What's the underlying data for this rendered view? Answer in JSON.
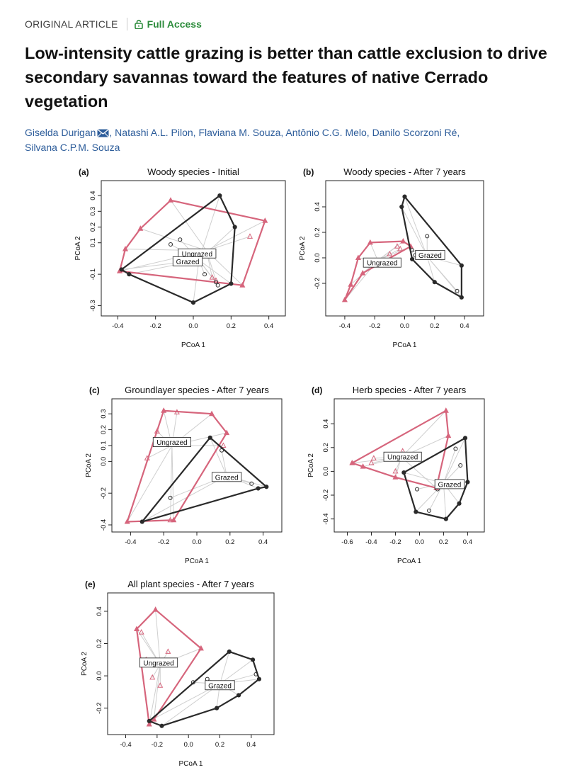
{
  "article_type": "ORIGINAL ARTICLE",
  "access_label": "Full Access",
  "title": "Low-intensity cattle grazing is better than cattle exclusion to drive secondary savannas toward the features of native Cerrado vegetation",
  "authors": {
    "first": "Giselda Durigan",
    "rest_line1": ", Natashi A.L. Pilon, Flaviana M. Souza, Antônio C.G. Melo, Danilo Scorzoni Ré,",
    "rest_line2": "Silvana C.P.M. Souza"
  },
  "colors": {
    "ungrazed": "#d6657c",
    "grazed": "#2a2a2a",
    "link": "#cfcfcf",
    "access": "#2d8c3c",
    "author": "#2c5c9a"
  },
  "chart_data": [
    {
      "type": "scatter",
      "panel": "(a)",
      "title": "Woody species - Initial",
      "xlabel": "PCoA 1",
      "ylabel": "PCoA 2",
      "xlim": [
        -0.45,
        0.45
      ],
      "ylim": [
        -0.32,
        0.45
      ],
      "xticks": [
        -0.4,
        -0.2,
        0.0,
        0.2,
        0.4
      ],
      "xtick_labels": [
        "-0.4",
        "-0.2",
        "0.0",
        "0.2",
        "0.4"
      ],
      "yticks": [
        -0.3,
        -0.1,
        0.1,
        0.2,
        0.3,
        0.4
      ],
      "ytick_labels": [
        "-0.3",
        "-0.1",
        "0.1",
        "0.2",
        "0.3",
        "0.4"
      ],
      "series": [
        {
          "name": "Ungrazed",
          "marker": "triangle",
          "hull": [
            [
              -0.12,
              0.37
            ],
            [
              0.38,
              0.24
            ],
            [
              0.26,
              -0.17
            ],
            [
              -0.39,
              -0.08
            ],
            [
              -0.36,
              0.06
            ],
            [
              -0.28,
              0.19
            ]
          ],
          "inner": [
            [
              0.3,
              0.14
            ],
            [
              0.12,
              -0.14
            ],
            [
              0.1,
              -0.12
            ]
          ],
          "centroid": [
            0.07,
            0.05
          ]
        },
        {
          "name": "Grazed",
          "marker": "circle",
          "hull": [
            [
              0.14,
              0.4
            ],
            [
              0.22,
              0.2
            ],
            [
              0.2,
              -0.16
            ],
            [
              0.0,
              -0.28
            ],
            [
              -0.34,
              -0.1
            ],
            [
              -0.38,
              -0.07
            ]
          ],
          "inner": [
            [
              -0.12,
              0.09
            ],
            [
              -0.07,
              0.12
            ],
            [
              0.06,
              -0.1
            ],
            [
              0.13,
              -0.17
            ],
            [
              0.12,
              -0.15
            ]
          ],
          "centroid": [
            0.03,
            -0.01
          ]
        }
      ],
      "labels": [
        {
          "text": "Ungrazed",
          "at": [
            0.02,
            0.03
          ]
        },
        {
          "text": "Grazed",
          "at": [
            -0.03,
            -0.02
          ]
        }
      ]
    },
    {
      "type": "scatter",
      "panel": "(b)",
      "title": "Woody species - After 7 years",
      "xlabel": "PCoA 1",
      "ylabel": "PCoA 2",
      "xlim": [
        -0.48,
        0.48
      ],
      "ylim": [
        -0.4,
        0.55
      ],
      "xticks": [
        -0.4,
        -0.2,
        0.0,
        0.2,
        0.4
      ],
      "xtick_labels": [
        "-0.4",
        "-0.2",
        "0.0",
        "0.2",
        "0.4"
      ],
      "yticks": [
        -0.2,
        0.0,
        0.2,
        0.4
      ],
      "ytick_labels": [
        "-0.2",
        "0.0",
        "0.2",
        "0.4"
      ],
      "series": [
        {
          "name": "Ungrazed",
          "marker": "triangle",
          "hull": [
            [
              -0.23,
              0.12
            ],
            [
              -0.01,
              0.13
            ],
            [
              0.04,
              0.09
            ],
            [
              -0.28,
              -0.12
            ],
            [
              -0.4,
              -0.33
            ],
            [
              -0.36,
              -0.21
            ],
            [
              -0.31,
              0.0
            ]
          ],
          "inner": [
            [
              -0.1,
              0.03
            ],
            [
              -0.05,
              0.09
            ],
            [
              -0.03,
              0.07
            ]
          ],
          "centroid": [
            -0.18,
            -0.02
          ]
        },
        {
          "name": "Grazed",
          "marker": "circle",
          "hull": [
            [
              0.0,
              0.48
            ],
            [
              0.38,
              -0.06
            ],
            [
              0.38,
              -0.31
            ],
            [
              0.2,
              -0.19
            ],
            [
              0.05,
              -0.01
            ],
            [
              -0.02,
              0.4
            ]
          ],
          "inner": [
            [
              0.15,
              0.17
            ],
            [
              0.07,
              0.02
            ],
            [
              0.05,
              0.06
            ],
            [
              0.35,
              -0.26
            ]
          ],
          "centroid": [
            0.15,
            0.01
          ]
        }
      ],
      "labels": [
        {
          "text": "Ungrazed",
          "at": [
            -0.15,
            -0.04
          ]
        },
        {
          "text": "Grazed",
          "at": [
            0.17,
            0.02
          ]
        }
      ]
    },
    {
      "type": "scatter",
      "panel": "(c)",
      "title": "Groundlayer species - After 7 years",
      "xlabel": "PCoA 1",
      "ylabel": "PCoA 2",
      "xlim": [
        -0.47,
        0.47
      ],
      "ylim": [
        -0.4,
        0.35
      ],
      "xticks": [
        -0.4,
        -0.2,
        0.0,
        0.2,
        0.4
      ],
      "xtick_labels": [
        "-0.4",
        "-0.2",
        "0.0",
        "0.2",
        "0.4"
      ],
      "yticks": [
        -0.4,
        -0.2,
        0.0,
        0.1,
        0.2,
        0.3
      ],
      "ytick_labels": [
        "-0.4",
        "-0.2",
        "0.0",
        "0.1",
        "0.2",
        "0.3"
      ],
      "series": [
        {
          "name": "Ungrazed",
          "marker": "triangle",
          "hull": [
            [
              -0.2,
              0.32
            ],
            [
              0.09,
              0.3
            ],
            [
              0.18,
              0.18
            ],
            [
              -0.14,
              -0.37
            ],
            [
              -0.42,
              -0.38
            ]
          ],
          "inner": [
            [
              -0.24,
              0.19
            ],
            [
              -0.12,
              0.31
            ],
            [
              -0.3,
              0.02
            ],
            [
              0.16,
              0.1
            ],
            [
              -0.16,
              -0.37
            ]
          ],
          "centroid": [
            -0.15,
            0.1
          ]
        },
        {
          "name": "Grazed",
          "marker": "circle",
          "hull": [
            [
              0.08,
              0.15
            ],
            [
              0.42,
              -0.16
            ],
            [
              0.37,
              -0.17
            ],
            [
              -0.33,
              -0.38
            ]
          ],
          "inner": [
            [
              -0.16,
              -0.23
            ],
            [
              0.15,
              0.07
            ],
            [
              0.33,
              -0.14
            ]
          ],
          "centroid": [
            0.18,
            -0.09
          ]
        }
      ],
      "labels": [
        {
          "text": "Ungrazed",
          "at": [
            -0.15,
            0.12
          ]
        },
        {
          "text": "Grazed",
          "at": [
            0.18,
            -0.1
          ]
        }
      ]
    },
    {
      "type": "scatter",
      "panel": "(d)",
      "title": "Herb species - After 7 years",
      "xlabel": "PCoA 1",
      "ylabel": "PCoA 2",
      "xlim": [
        -0.65,
        0.48
      ],
      "ylim": [
        -0.45,
        0.55
      ],
      "xticks": [
        -0.6,
        -0.4,
        -0.2,
        0.0,
        0.2,
        0.4
      ],
      "xtick_labels": [
        "-0.6",
        "-0.4",
        "-0.2",
        "0.0",
        "0.2",
        "0.4"
      ],
      "yticks": [
        -0.4,
        -0.2,
        0.0,
        0.2,
        0.4
      ],
      "ytick_labels": [
        "-0.4",
        "-0.2",
        "0.0",
        "0.2",
        "0.4"
      ],
      "series": [
        {
          "name": "Ungrazed",
          "marker": "triangle",
          "hull": [
            [
              0.22,
              0.51
            ],
            [
              0.24,
              0.3
            ],
            [
              0.14,
              -0.14
            ],
            [
              -0.2,
              -0.05
            ],
            [
              -0.47,
              0.04
            ],
            [
              -0.56,
              0.07
            ]
          ],
          "inner": [
            [
              -0.38,
              0.11
            ],
            [
              -0.4,
              0.07
            ],
            [
              -0.14,
              0.17
            ],
            [
              -0.2,
              0.0
            ]
          ],
          "centroid": [
            -0.15,
            0.12
          ]
        },
        {
          "name": "Grazed",
          "marker": "circle",
          "hull": [
            [
              0.38,
              0.28
            ],
            [
              0.4,
              -0.09
            ],
            [
              0.33,
              -0.27
            ],
            [
              0.22,
              -0.4
            ],
            [
              -0.03,
              -0.34
            ],
            [
              -0.13,
              -0.01
            ]
          ],
          "inner": [
            [
              0.3,
              0.19
            ],
            [
              0.34,
              0.05
            ],
            [
              -0.02,
              -0.15
            ],
            [
              0.08,
              -0.33
            ],
            [
              0.15,
              -0.15
            ]
          ],
          "centroid": [
            0.2,
            -0.1
          ]
        }
      ],
      "labels": [
        {
          "text": "Ungrazed",
          "at": [
            -0.14,
            0.12
          ]
        },
        {
          "text": "Grazed",
          "at": [
            0.25,
            -0.11
          ]
        }
      ]
    },
    {
      "type": "scatter",
      "panel": "(e)",
      "title": "All plant species - After 7 years",
      "xlabel": "PCoA 1",
      "ylabel": "PCoA 2",
      "xlim": [
        -0.47,
        0.5
      ],
      "ylim": [
        -0.32,
        0.47
      ],
      "xticks": [
        -0.4,
        -0.2,
        0.0,
        0.2,
        0.4
      ],
      "xtick_labels": [
        "-0.4",
        "-0.2",
        "0.0",
        "0.2",
        "0.4"
      ],
      "yticks": [
        -0.2,
        0.0,
        0.2,
        0.4
      ],
      "ytick_labels": [
        "-0.2",
        "0.0",
        "0.2",
        "0.4"
      ],
      "series": [
        {
          "name": "Ungrazed",
          "marker": "triangle",
          "hull": [
            [
              -0.21,
              0.41
            ],
            [
              0.08,
              0.17
            ],
            [
              -0.22,
              -0.27
            ],
            [
              -0.25,
              -0.3
            ],
            [
              -0.33,
              0.29
            ]
          ],
          "inner": [
            [
              -0.3,
              0.27
            ],
            [
              -0.13,
              0.15
            ],
            [
              -0.23,
              -0.01
            ],
            [
              -0.18,
              -0.06
            ],
            [
              -0.27,
              0.1
            ]
          ],
          "centroid": [
            -0.18,
            0.07
          ]
        },
        {
          "name": "Grazed",
          "marker": "circle",
          "hull": [
            [
              0.26,
              0.15
            ],
            [
              0.41,
              0.1
            ],
            [
              0.45,
              -0.02
            ],
            [
              0.32,
              -0.12
            ],
            [
              0.18,
              -0.2
            ],
            [
              -0.17,
              -0.31
            ],
            [
              -0.25,
              -0.28
            ]
          ],
          "inner": [
            [
              0.43,
              0.01
            ],
            [
              0.12,
              -0.02
            ],
            [
              0.03,
              -0.04
            ]
          ],
          "centroid": [
            0.2,
            -0.05
          ]
        }
      ],
      "labels": [
        {
          "text": "Ungrazed",
          "at": [
            -0.19,
            0.08
          ]
        },
        {
          "text": "Grazed",
          "at": [
            0.2,
            -0.06
          ]
        }
      ]
    }
  ]
}
